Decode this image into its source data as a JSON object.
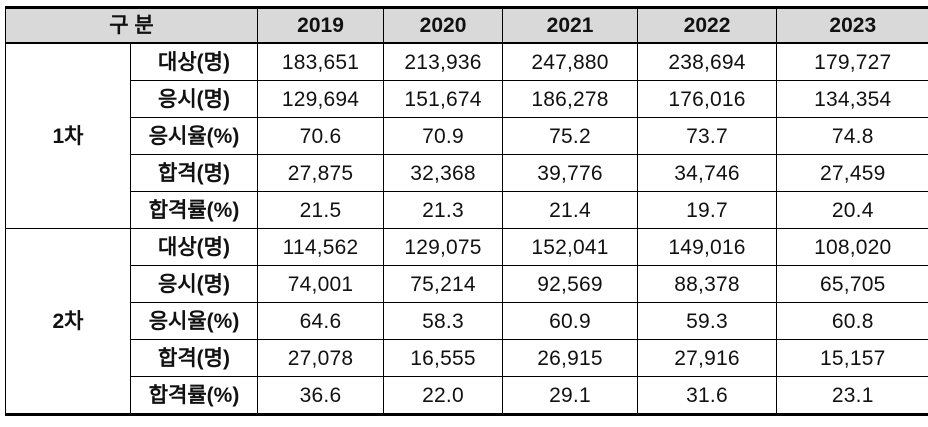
{
  "table": {
    "corner_label": "구 분",
    "years": [
      "2019",
      "2020",
      "2021",
      "2022",
      "2023"
    ],
    "sections": [
      {
        "group": "1차",
        "rows": [
          {
            "label": "대상(명)",
            "values": [
              "183,651",
              "213,936",
              "247,880",
              "238,694",
              "179,727"
            ]
          },
          {
            "label": "응시(명)",
            "values": [
              "129,694",
              "151,674",
              "186,278",
              "176,016",
              "134,354"
            ]
          },
          {
            "label": "응시율(%)",
            "values": [
              "70.6",
              "70.9",
              "75.2",
              "73.7",
              "74.8"
            ]
          },
          {
            "label": "합격(명)",
            "values": [
              "27,875",
              "32,368",
              "39,776",
              "34,746",
              "27,459"
            ]
          },
          {
            "label": "합격률(%)",
            "values": [
              "21.5",
              "21.3",
              "21.4",
              "19.7",
              "20.4"
            ]
          }
        ]
      },
      {
        "group": "2차",
        "rows": [
          {
            "label": "대상(명)",
            "values": [
              "114,562",
              "129,075",
              "152,041",
              "149,016",
              "108,020"
            ]
          },
          {
            "label": "응시(명)",
            "values": [
              "74,001",
              "75,214",
              "92,569",
              "88,378",
              "65,705"
            ]
          },
          {
            "label": "응시율(%)",
            "values": [
              "64.6",
              "58.3",
              "60.9",
              "59.3",
              "60.8"
            ]
          },
          {
            "label": "합격(명)",
            "values": [
              "27,078",
              "16,555",
              "26,915",
              "27,916",
              "15,157"
            ]
          },
          {
            "label": "합격률(%)",
            "values": [
              "36.6",
              "22.0",
              "29.1",
              "31.6",
              "23.1"
            ]
          }
        ]
      }
    ],
    "colors": {
      "header_bg": "#d9d9d9",
      "border": "#000000",
      "text": "#111111"
    }
  },
  "chart_data": {
    "type": "table",
    "title": "",
    "columns": [
      "구 분",
      "",
      "2019",
      "2020",
      "2021",
      "2022",
      "2023"
    ],
    "rows": [
      [
        "1차",
        "대상(명)",
        183651,
        213936,
        247880,
        238694,
        179727
      ],
      [
        "1차",
        "응시(명)",
        129694,
        151674,
        186278,
        176016,
        134354
      ],
      [
        "1차",
        "응시율(%)",
        70.6,
        70.9,
        75.2,
        73.7,
        74.8
      ],
      [
        "1차",
        "합격(명)",
        27875,
        32368,
        39776,
        34746,
        27459
      ],
      [
        "1차",
        "합격률(%)",
        21.5,
        21.3,
        21.4,
        19.7,
        20.4
      ],
      [
        "2차",
        "대상(명)",
        114562,
        129075,
        152041,
        149016,
        108020
      ],
      [
        "2차",
        "응시(명)",
        74001,
        75214,
        92569,
        88378,
        65705
      ],
      [
        "2차",
        "응시율(%)",
        64.6,
        58.3,
        60.9,
        59.3,
        60.8
      ],
      [
        "2차",
        "합격(명)",
        27078,
        16555,
        26915,
        27916,
        15157
      ],
      [
        "2차",
        "합격률(%)",
        36.6,
        22.0,
        29.1,
        31.6,
        23.1
      ]
    ]
  }
}
